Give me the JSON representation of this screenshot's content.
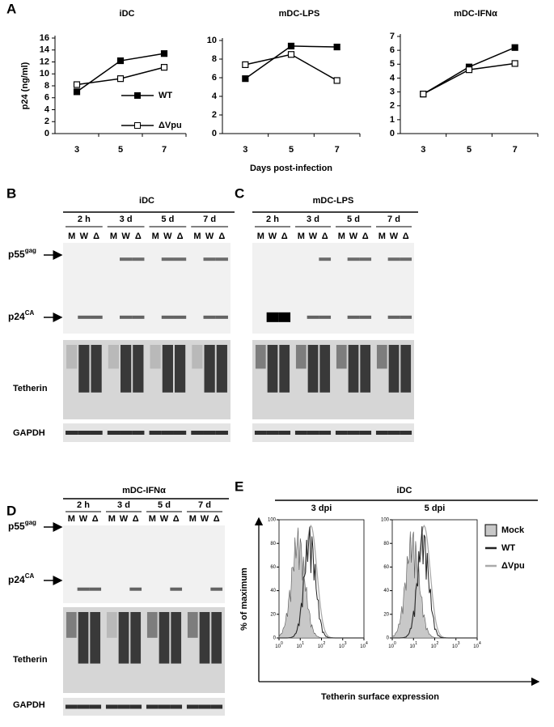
{
  "chart_data": [
    {
      "type": "line",
      "panel": "A",
      "title": "iDC",
      "y_label": "p24 (ng/ml)",
      "categories": [
        "3",
        "5",
        "7"
      ],
      "series": [
        {
          "name": "WT",
          "color": "#000000",
          "values": [
            7,
            12.2,
            13.4
          ]
        },
        {
          "name": "ΔVpu",
          "color": "#000000",
          "values": [
            8.2,
            9.2,
            11.1
          ]
        }
      ],
      "ylim": [
        0,
        16
      ],
      "yticks": [
        0,
        2,
        4,
        6,
        8,
        10,
        12,
        14,
        16
      ],
      "legend": "center right"
    },
    {
      "type": "line",
      "title": "mDC-LPS",
      "x_label": "Days post-infection",
      "categories": [
        "3",
        "5",
        "7"
      ],
      "series": [
        {
          "name": "WT",
          "color": "#000000",
          "values": [
            5.9,
            9.4,
            9.3
          ]
        },
        {
          "name": "ΔVpu",
          "color": "#000000",
          "values": [
            7.4,
            8.5,
            5.7
          ]
        }
      ],
      "ylim": [
        0,
        10
      ],
      "yticks": [
        0,
        2,
        4,
        6,
        8,
        10
      ]
    },
    {
      "type": "line",
      "title": "mDC-IFNα",
      "categories": [
        "3",
        "5",
        "7"
      ],
      "series": [
        {
          "name": "WT",
          "color": "#000000",
          "values": [
            2.85,
            4.8,
            6.2
          ]
        },
        {
          "name": "ΔVpu",
          "color": "#000000",
          "values": [
            2.85,
            4.6,
            5.05
          ]
        }
      ],
      "ylim": [
        0,
        7
      ],
      "yticks": [
        0,
        1,
        2,
        3,
        4,
        5,
        6,
        7
      ]
    }
  ],
  "blots": [
    {
      "panel": "B",
      "title": "iDC",
      "timepoints": [
        "2 h",
        "3 d",
        "5 d",
        "7 d"
      ],
      "lanes": [
        "M",
        "W",
        "Δ",
        "M",
        "W",
        "Δ",
        "M",
        "W",
        "Δ",
        "M",
        "W",
        "Δ"
      ],
      "rows": [
        {
          "text": "p55",
          "sup": "gag"
        },
        {
          "text": "p24",
          "sup": "CA"
        },
        {
          "text": "Tetherin"
        },
        {
          "text": "GAPDH"
        }
      ]
    },
    {
      "panel": "C",
      "title": "mDC-LPS",
      "timepoints": [
        "2 h",
        "3 d",
        "5 d",
        "7 d"
      ],
      "lanes": [
        "M",
        "W",
        "Δ",
        "M",
        "W",
        "Δ",
        "M",
        "W",
        "Δ",
        "M",
        "W",
        "Δ"
      ]
    },
    {
      "panel": "D",
      "title": "mDC-IFNα",
      "timepoints": [
        "2 h",
        "3 d",
        "5 d",
        "7 d"
      ],
      "lanes": [
        "M",
        "W",
        "Δ",
        "M",
        "W",
        "Δ",
        "M",
        "W",
        "Δ",
        "M",
        "W",
        "Δ"
      ],
      "rows": [
        {
          "text": "p55",
          "sup": "gag"
        },
        {
          "text": "p24",
          "sup": "CA"
        },
        {
          "text": "Tetherin"
        },
        {
          "text": "GAPDH"
        }
      ]
    }
  ],
  "flow": {
    "panel": "E",
    "title": "iDC",
    "panels": [
      "3 dpi",
      "5 dpi"
    ],
    "y_label": "% of maximum",
    "x_label": "Tetherin surface expression",
    "ylim": [
      0,
      100
    ],
    "yticks": [
      0,
      20,
      40,
      60,
      80,
      100
    ],
    "xscale": "log",
    "xlim": [
      1,
      10000
    ],
    "xticks": [
      {
        "value": 1,
        "label": "10",
        "sup": "0"
      },
      {
        "value": 10,
        "label": "10",
        "sup": "1"
      },
      {
        "value": 100,
        "label": "10",
        "sup": "2"
      },
      {
        "value": 1000,
        "label": "10",
        "sup": "3"
      },
      {
        "value": 10000,
        "label": "10",
        "sup": "4"
      }
    ],
    "legend": [
      {
        "name": "Mock",
        "color": "#c8c8c8"
      },
      {
        "name": "WT",
        "color": "#222222"
      },
      {
        "name": "ΔVpu",
        "color": "#aaaaaa"
      }
    ]
  }
}
